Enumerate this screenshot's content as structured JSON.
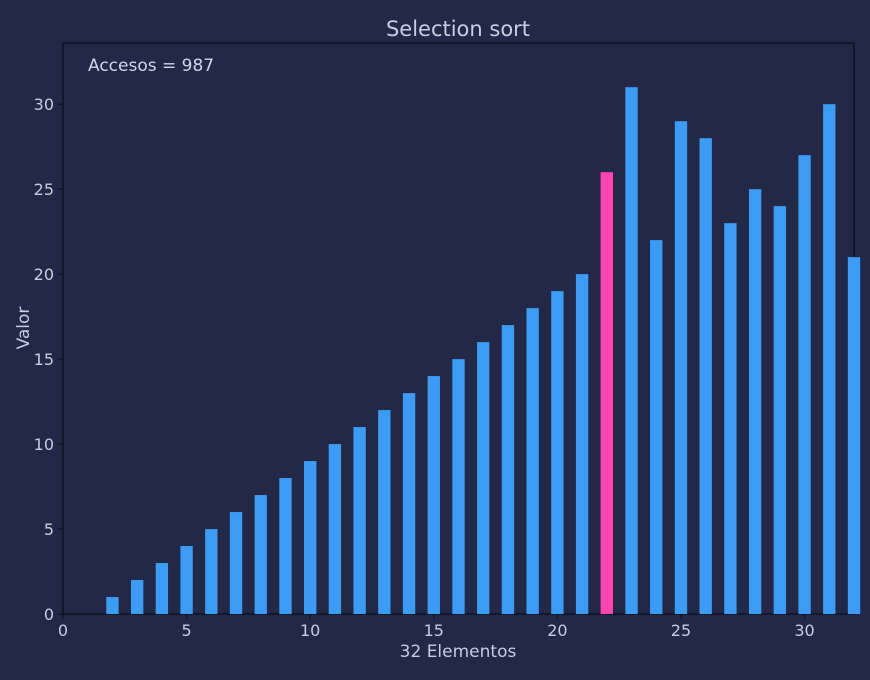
{
  "chart_data": {
    "type": "bar",
    "title": "Selection sort",
    "xlabel": "32 Elementos",
    "ylabel": "Valor",
    "annotation": "Accesos = 987",
    "xlim": [
      0,
      32
    ],
    "ylim": [
      0,
      33.6
    ],
    "xticks": [
      0,
      5,
      10,
      15,
      20,
      25,
      30
    ],
    "yticks": [
      0,
      5,
      10,
      15,
      20,
      25,
      30
    ],
    "grid": false,
    "x": [
      0,
      1,
      2,
      3,
      4,
      5,
      6,
      7,
      8,
      9,
      10,
      11,
      12,
      13,
      14,
      15,
      16,
      17,
      18,
      19,
      20,
      21,
      22,
      23,
      24,
      25,
      26,
      27,
      28,
      29,
      30,
      31
    ],
    "values": [
      0,
      1,
      2,
      3,
      4,
      5,
      6,
      7,
      8,
      9,
      10,
      11,
      12,
      13,
      14,
      15,
      16,
      17,
      18,
      19,
      20,
      26,
      31,
      22,
      29,
      28,
      23,
      25,
      24,
      27,
      30,
      21
    ],
    "highlight_index": 21,
    "colors": {
      "bar": "#3a9cf4",
      "highlight": "#ff43b0",
      "background": "#222845",
      "axis": "#0a0c14",
      "text": "#c8cde0"
    }
  }
}
